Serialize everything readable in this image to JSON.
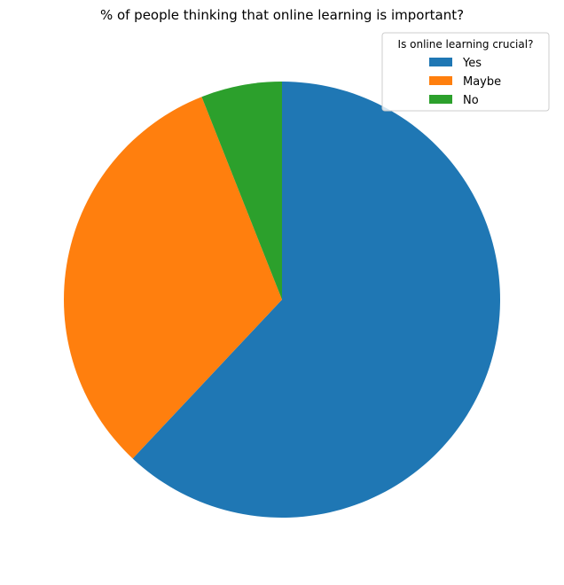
{
  "chart_data": {
    "type": "pie",
    "title": "% of people thinking that online learning is important?",
    "legend": {
      "title": "Is online learning crucial?",
      "placement": "top-right"
    },
    "start_angle_deg": 90,
    "direction": "clockwise",
    "slices": [
      {
        "label": "Yes",
        "value": 62,
        "color": "#1f77b4"
      },
      {
        "label": "Maybe",
        "value": 32,
        "color": "#ff7f0e"
      },
      {
        "label": "No",
        "value": 6,
        "color": "#2ca02c"
      }
    ]
  }
}
